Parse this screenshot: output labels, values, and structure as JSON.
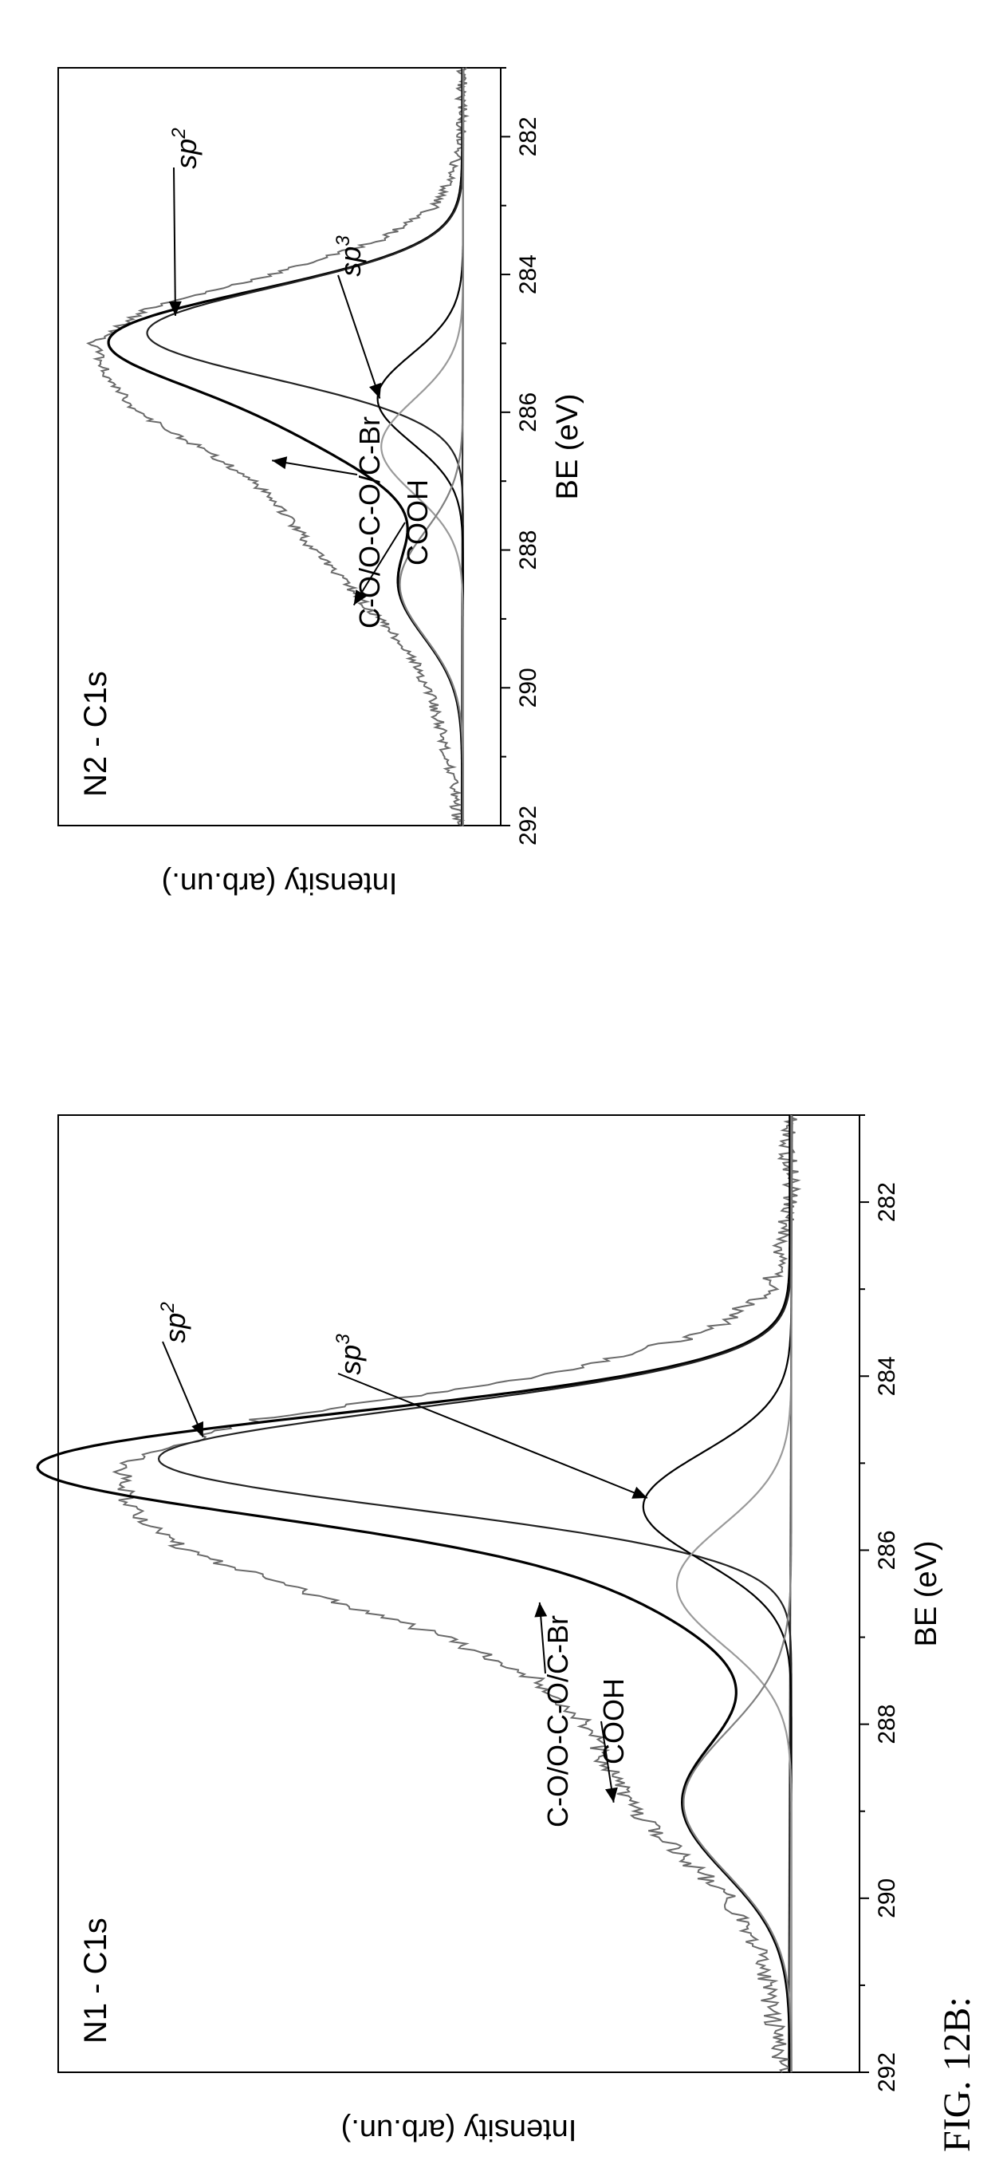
{
  "figure_label": "FIG. 12B:",
  "chart_data": [
    {
      "type": "line",
      "title": "N1 - C1s",
      "xlabel": "BE (eV)",
      "ylabel": "Intensity (arb.un.)",
      "xlim": [
        292,
        281
      ],
      "x_reversed": true,
      "x_ticks": [
        292,
        290,
        288,
        286,
        284,
        282
      ],
      "y_ticks": [],
      "grid": false,
      "legend": "none",
      "series": [
        {
          "style": "measured",
          "color": "#6a6a6a",
          "x": [
            292,
            291.5,
            291,
            290.5,
            290,
            289.5,
            289,
            288.5,
            288,
            287.5,
            287,
            286.5,
            286,
            285.5,
            285,
            284.5,
            284,
            283.5,
            283,
            282.5,
            282,
            281.5,
            281
          ],
          "y": [
            0.02,
            0.03,
            0.04,
            0.06,
            0.1,
            0.17,
            0.24,
            0.28,
            0.31,
            0.38,
            0.52,
            0.72,
            0.91,
            0.99,
            1.0,
            0.8,
            0.38,
            0.13,
            0.04,
            0.02,
            0.01,
            0.01,
            0.01
          ]
        },
        {
          "name": "sp2",
          "color": "#222222",
          "center": 284.95,
          "amplitude": 0.94,
          "fwhm": 1.35
        },
        {
          "name": "sp3",
          "color": "#000000",
          "center": 285.5,
          "amplitude": 0.22,
          "fwhm": 1.45
        },
        {
          "name": "C-O/O-C-O/C-Br",
          "color": "#9a9a9a",
          "center": 286.4,
          "amplitude": 0.17,
          "fwhm": 1.6
        },
        {
          "name": "COOH",
          "color": "#808080",
          "center": 288.9,
          "amplitude": 0.16,
          "fwhm": 1.9
        }
      ],
      "annotations": [
        {
          "label": "sp",
          "sup": "2",
          "x": 284.7,
          "y": 0.88
        },
        {
          "label": "sp",
          "sup": "3",
          "x": 285.4,
          "y": 0.22
        },
        {
          "label": "C-O/O-C-O/C-Br",
          "x": 286.6,
          "y": 0.38
        },
        {
          "label": "COOH",
          "x": 288.9,
          "y": 0.27
        }
      ]
    },
    {
      "type": "line",
      "title": "N2 - C1s",
      "xlabel": "BE (eV)",
      "ylabel": "Intensity (arb.un.)",
      "xlim": [
        292,
        281
      ],
      "x_reversed": true,
      "x_ticks": [
        292,
        290,
        288,
        286,
        284,
        282
      ],
      "y_ticks": [],
      "grid": false,
      "legend": "none",
      "series": [
        {
          "style": "measured",
          "color": "#6a6a6a",
          "x": [
            292,
            291.5,
            291,
            290.5,
            290,
            289.5,
            289,
            288.5,
            288,
            287.5,
            287,
            286.5,
            286,
            285.5,
            285,
            284.5,
            284,
            283.5,
            283,
            282.5,
            282,
            281.5,
            281
          ],
          "y": [
            0.02,
            0.03,
            0.05,
            0.07,
            0.1,
            0.15,
            0.23,
            0.32,
            0.41,
            0.48,
            0.57,
            0.72,
            0.88,
            0.96,
            1.0,
            0.86,
            0.52,
            0.23,
            0.08,
            0.03,
            0.01,
            0.01,
            0.01
          ]
        },
        {
          "name": "sp2",
          "color": "#222222",
          "center": 284.85,
          "amplitude": 0.85,
          "fwhm": 1.55
        },
        {
          "name": "sp3",
          "color": "#000000",
          "center": 285.8,
          "amplitude": 0.23,
          "fwhm": 1.5
        },
        {
          "name": "C-O/O-C-O/C-Br",
          "color": "#9a9a9a",
          "center": 286.5,
          "amplitude": 0.22,
          "fwhm": 1.6
        },
        {
          "name": "COOH",
          "color": "#808080",
          "center": 288.5,
          "amplitude": 0.17,
          "fwhm": 1.8
        }
      ],
      "annotations": [
        {
          "label": "sp",
          "sup": "2",
          "x": 284.6,
          "y": 0.78
        },
        {
          "label": "sp",
          "sup": "3",
          "x": 285.8,
          "y": 0.23
        },
        {
          "label": "C-O/O-C-O/C-Br",
          "x": 286.7,
          "y": 0.52
        },
        {
          "label": "COOH",
          "x": 288.8,
          "y": 0.3
        }
      ]
    }
  ]
}
